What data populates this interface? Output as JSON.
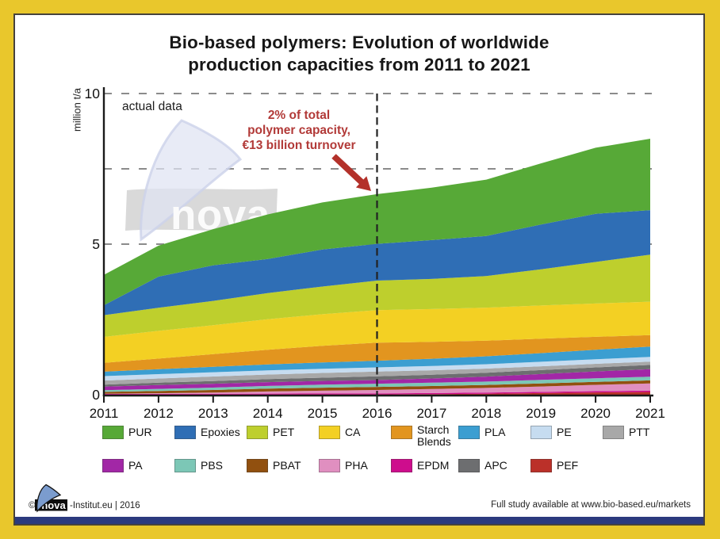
{
  "frame": {
    "background_color": "#e9c72c",
    "panel_color": "#ffffff",
    "panel_border_color": "#46423c",
    "bottom_bar_color": "#2b3a7e"
  },
  "title": {
    "line1": "Bio-based polymers: Evolution of worldwide",
    "line2": "production capacities from 2011 to 2021"
  },
  "plot_annotations": {
    "actual_data_label": "actual data",
    "callout": {
      "line1": "2% of total",
      "line2": "polymer capacity,",
      "line3": "€13 billion turnover",
      "color": "#b23a38",
      "arrow_color": "#b3312a"
    },
    "callout_target_year": 2016,
    "watermark_text": "nova"
  },
  "footer": {
    "copyright": "©",
    "logo_text": "nova",
    "left_text": "-Institut.eu | 2016",
    "right_text": "Full study available at www.bio-based.eu/markets"
  },
  "chart_data": {
    "type": "area",
    "stacked": true,
    "title": "Bio-based polymers: Evolution of worldwide production capacities from 2011 to 2021",
    "xlabel": "",
    "ylabel": "million t/a",
    "ylim": [
      0,
      10
    ],
    "yticks": [
      0,
      5,
      10
    ],
    "gridlines_y": [
      5,
      7.5,
      10
    ],
    "grid_dashed": true,
    "vertical_marker_x": 2016,
    "legend_position": "bottom",
    "x": [
      2011,
      2012,
      2013,
      2014,
      2015,
      2016,
      2017,
      2018,
      2019,
      2020,
      2021
    ],
    "series_bottom_to_top": [
      {
        "name": "PEF",
        "color": "#bb3029",
        "values": [
          0.005,
          0.005,
          0.005,
          0.008,
          0.01,
          0.01,
          0.02,
          0.035,
          0.055,
          0.075,
          0.092
        ]
      },
      {
        "name": "EPDM",
        "color": "#ce0d8d",
        "values": [
          0.021,
          0.025,
          0.028,
          0.03,
          0.03,
          0.032,
          0.034,
          0.036,
          0.04,
          0.043,
          0.045
        ]
      },
      {
        "name": "PHA",
        "color": "#e08fc0",
        "values": [
          0.005,
          0.02,
          0.04,
          0.07,
          0.095,
          0.116,
          0.135,
          0.155,
          0.18,
          0.21,
          0.24
        ]
      },
      {
        "name": "PBAT",
        "color": "#91500f",
        "values": [
          0.065,
          0.075,
          0.085,
          0.095,
          0.1,
          0.103,
          0.1,
          0.1,
          0.098,
          0.098,
          0.098
        ]
      },
      {
        "name": "PBS",
        "color": "#7cc7b6",
        "values": [
          0.055,
          0.07,
          0.08,
          0.09,
          0.1,
          0.106,
          0.11,
          0.112,
          0.118,
          0.122,
          0.125
        ]
      },
      {
        "name": "PA",
        "color": "#a227a6",
        "values": [
          0.12,
          0.125,
          0.128,
          0.125,
          0.122,
          0.121,
          0.14,
          0.165,
          0.195,
          0.225,
          0.25
        ]
      },
      {
        "name": "APC",
        "color": "#6d6e70",
        "values": [
          0.067,
          0.08,
          0.09,
          0.1,
          0.11,
          0.122,
          0.125,
          0.128,
          0.132,
          0.136,
          0.14
        ]
      },
      {
        "name": "PTT",
        "color": "#a8a8a8",
        "values": [
          0.133,
          0.14,
          0.148,
          0.152,
          0.156,
          0.158,
          0.148,
          0.138,
          0.128,
          0.118,
          0.11
        ]
      },
      {
        "name": "PE",
        "color": "#c6dcf0",
        "values": [
          0.147,
          0.145,
          0.143,
          0.141,
          0.14,
          0.14,
          0.142,
          0.145,
          0.148,
          0.152,
          0.156
        ]
      },
      {
        "name": "PLA",
        "color": "#3b9ed1",
        "values": [
          0.148,
          0.165,
          0.18,
          0.195,
          0.21,
          0.222,
          0.24,
          0.262,
          0.288,
          0.315,
          0.344
        ]
      },
      {
        "name": "Starch Blends",
        "color": "#e2951f",
        "values": [
          0.295,
          0.35,
          0.42,
          0.49,
          0.55,
          0.6,
          0.56,
          0.52,
          0.48,
          0.43,
          0.38
        ]
      },
      {
        "name": "CA",
        "color": "#f3d023",
        "values": [
          0.86,
          0.92,
          0.96,
          1.01,
          1.05,
          1.08,
          1.09,
          1.095,
          1.1,
          1.105,
          1.11
        ]
      },
      {
        "name": "PET",
        "color": "#becf2d",
        "values": [
          0.72,
          0.77,
          0.81,
          0.87,
          0.92,
          0.98,
          1.0,
          1.05,
          1.2,
          1.38,
          1.56
        ]
      },
      {
        "name": "Epoxies",
        "color": "#2f6eb5",
        "values": [
          0.33,
          1.03,
          1.18,
          1.13,
          1.23,
          1.22,
          1.29,
          1.33,
          1.49,
          1.6,
          1.48
        ]
      },
      {
        "name": "PUR",
        "color": "#57a937",
        "values": [
          1.01,
          1.03,
          1.2,
          1.48,
          1.56,
          1.65,
          1.74,
          1.87,
          2.03,
          2.19,
          2.37
        ]
      }
    ],
    "legend_rows": [
      [
        "PUR",
        "Epoxies",
        "PET",
        "CA",
        "Starch Blends",
        "PLA",
        "PE",
        "PTT"
      ],
      [
        "PA",
        "PBS",
        "PBAT",
        "PHA",
        "EPDM",
        "APC",
        "PEF"
      ]
    ]
  }
}
